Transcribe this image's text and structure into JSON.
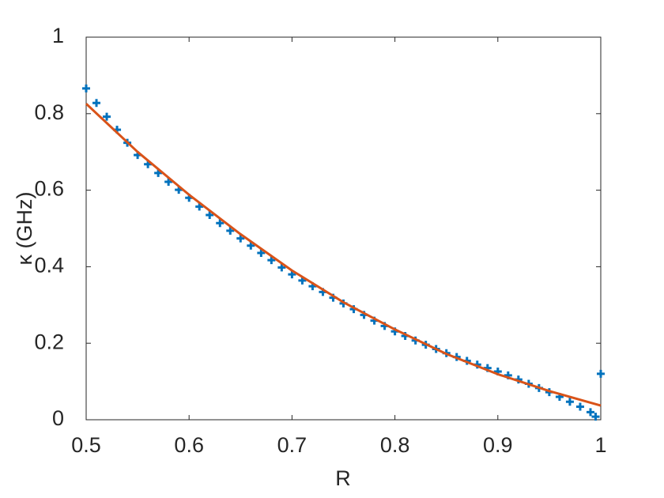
{
  "chart_data": {
    "type": "scatter",
    "xlabel": "R",
    "ylabel": "κ (GHz)",
    "xlim": [
      0.5,
      1
    ],
    "ylim": [
      0,
      1
    ],
    "xticks": [
      0.5,
      0.6,
      0.7,
      0.8,
      0.9,
      1
    ],
    "yticks": [
      0,
      0.2,
      0.4,
      0.6,
      0.8,
      1
    ],
    "box": true,
    "series": [
      {
        "type": "scatter",
        "marker": "+",
        "color": "#0072bd",
        "x": [
          0.5,
          0.51,
          0.52,
          0.53,
          0.54,
          0.55,
          0.56,
          0.57,
          0.58,
          0.59,
          0.6,
          0.61,
          0.62,
          0.63,
          0.64,
          0.65,
          0.66,
          0.67,
          0.68,
          0.69,
          0.7,
          0.71,
          0.72,
          0.73,
          0.74,
          0.75,
          0.76,
          0.77,
          0.78,
          0.79,
          0.8,
          0.81,
          0.82,
          0.83,
          0.84,
          0.85,
          0.86,
          0.87,
          0.88,
          0.89,
          0.9,
          0.91,
          0.92,
          0.93,
          0.94,
          0.95,
          0.96,
          0.97,
          0.98,
          0.99,
          0.995,
          1
        ],
        "values": [
          0.866,
          0.828,
          0.792,
          0.758,
          0.724,
          0.692,
          0.668,
          0.645,
          0.622,
          0.601,
          0.58,
          0.557,
          0.535,
          0.514,
          0.494,
          0.474,
          0.455,
          0.436,
          0.417,
          0.398,
          0.38,
          0.364,
          0.349,
          0.334,
          0.319,
          0.304,
          0.289,
          0.274,
          0.259,
          0.245,
          0.231,
          0.219,
          0.207,
          0.196,
          0.185,
          0.174,
          0.164,
          0.154,
          0.144,
          0.135,
          0.126,
          0.116,
          0.105,
          0.094,
          0.083,
          0.072,
          0.06,
          0.047,
          0.034,
          0.02,
          0.008,
          0.12
        ]
      },
      {
        "type": "line",
        "color": "#d95319",
        "x": [
          0.5,
          0.55,
          0.6,
          0.65,
          0.7,
          0.75,
          0.8,
          0.85,
          0.9,
          0.95,
          1
        ],
        "values": [
          0.826,
          0.7,
          0.588,
          0.485,
          0.39,
          0.307,
          0.236,
          0.172,
          0.119,
          0.075,
          0.037
        ]
      }
    ]
  }
}
